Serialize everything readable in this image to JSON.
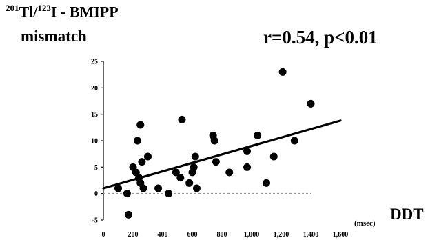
{
  "chart_data": {
    "type": "scatter",
    "title": "",
    "ylabel": {
      "prefix_sup_1": "201",
      "part_1": "Tl/",
      "prefix_sup_2": "123",
      "part_2": "I - BMIPP",
      "line_2": "mismatch"
    },
    "xlabel": "DDT",
    "x_unit": "(msec)",
    "stat_annotation": "r=0.54, p<0.01",
    "xlim": [
      0,
      1600
    ],
    "ylim": [
      -5,
      25
    ],
    "xticks": [
      0,
      200,
      400,
      600,
      800,
      1000,
      1200,
      1400,
      1600
    ],
    "xtick_labels": [
      "0",
      "200",
      "400",
      "600",
      "800",
      "1,000",
      "1,200",
      "1,400",
      "1,600"
    ],
    "yticks": [
      -5,
      0,
      5,
      10,
      15,
      20,
      25
    ],
    "ytick_labels": [
      "-5",
      "0",
      "5",
      "10",
      "15",
      "20",
      "25"
    ],
    "reference_line_y": 0,
    "regression_line": {
      "x": [
        0,
        1600
      ],
      "y": [
        1.0,
        13.8
      ]
    },
    "points": [
      {
        "x": 100,
        "y": 1
      },
      {
        "x": 160,
        "y": 0
      },
      {
        "x": 170,
        "y": -4
      },
      {
        "x": 200,
        "y": 5
      },
      {
        "x": 220,
        "y": 4
      },
      {
        "x": 230,
        "y": 10
      },
      {
        "x": 240,
        "y": 3
      },
      {
        "x": 250,
        "y": 13
      },
      {
        "x": 250,
        "y": 2
      },
      {
        "x": 260,
        "y": 6
      },
      {
        "x": 270,
        "y": 1
      },
      {
        "x": 300,
        "y": 7
      },
      {
        "x": 370,
        "y": 1
      },
      {
        "x": 440,
        "y": 0
      },
      {
        "x": 490,
        "y": 4
      },
      {
        "x": 520,
        "y": 3
      },
      {
        "x": 530,
        "y": 14
      },
      {
        "x": 580,
        "y": 2
      },
      {
        "x": 600,
        "y": 4
      },
      {
        "x": 610,
        "y": 5
      },
      {
        "x": 620,
        "y": 7
      },
      {
        "x": 630,
        "y": 1
      },
      {
        "x": 740,
        "y": 11
      },
      {
        "x": 750,
        "y": 10
      },
      {
        "x": 760,
        "y": 6
      },
      {
        "x": 850,
        "y": 4
      },
      {
        "x": 970,
        "y": 8
      },
      {
        "x": 970,
        "y": 5
      },
      {
        "x": 1040,
        "y": 11
      },
      {
        "x": 1100,
        "y": 2
      },
      {
        "x": 1150,
        "y": 7
      },
      {
        "x": 1210,
        "y": 23
      },
      {
        "x": 1290,
        "y": 10
      },
      {
        "x": 1400,
        "y": 17
      }
    ]
  }
}
